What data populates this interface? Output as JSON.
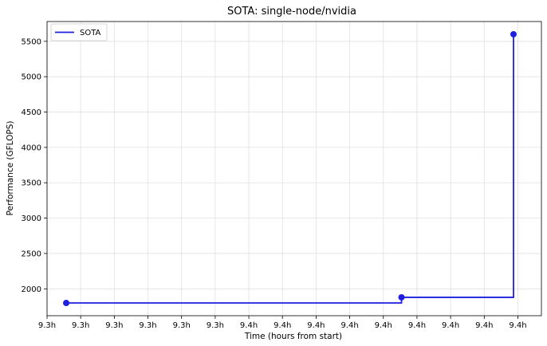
{
  "chart_data": {
    "type": "line",
    "title": "SOTA: single-node/nvidia",
    "xlabel": "Time (hours from start)",
    "ylabel": "Performance (GFLOPS)",
    "x_tick_labels": [
      "9.3h",
      "9.3h",
      "9.3h",
      "9.3h",
      "9.3h",
      "9.3h",
      "9.4h",
      "9.4h",
      "9.4h",
      "9.4h",
      "9.4h",
      "9.4h",
      "9.4h",
      "9.4h",
      "9.4h"
    ],
    "y_ticks": [
      2000,
      2500,
      3000,
      3500,
      4000,
      4500,
      5000,
      5500
    ],
    "ylim": [
      1620,
      5780
    ],
    "xlim": [
      9.29,
      9.437
    ],
    "x_tick_values": [
      9.29,
      9.3,
      9.31,
      9.32,
      9.33,
      9.34,
      9.35,
      9.36,
      9.37,
      9.38,
      9.39,
      9.4,
      9.41,
      9.42,
      9.43
    ],
    "grid": true,
    "legend_position": "top-left",
    "series": [
      {
        "name": "SOTA",
        "color": "#1f1fdf",
        "step": "post",
        "points": [
          {
            "x": 9.2957,
            "y": 1800
          },
          {
            "x": 9.3954,
            "y": 1880
          },
          {
            "x": 9.4287,
            "y": 5600
          }
        ]
      }
    ]
  }
}
